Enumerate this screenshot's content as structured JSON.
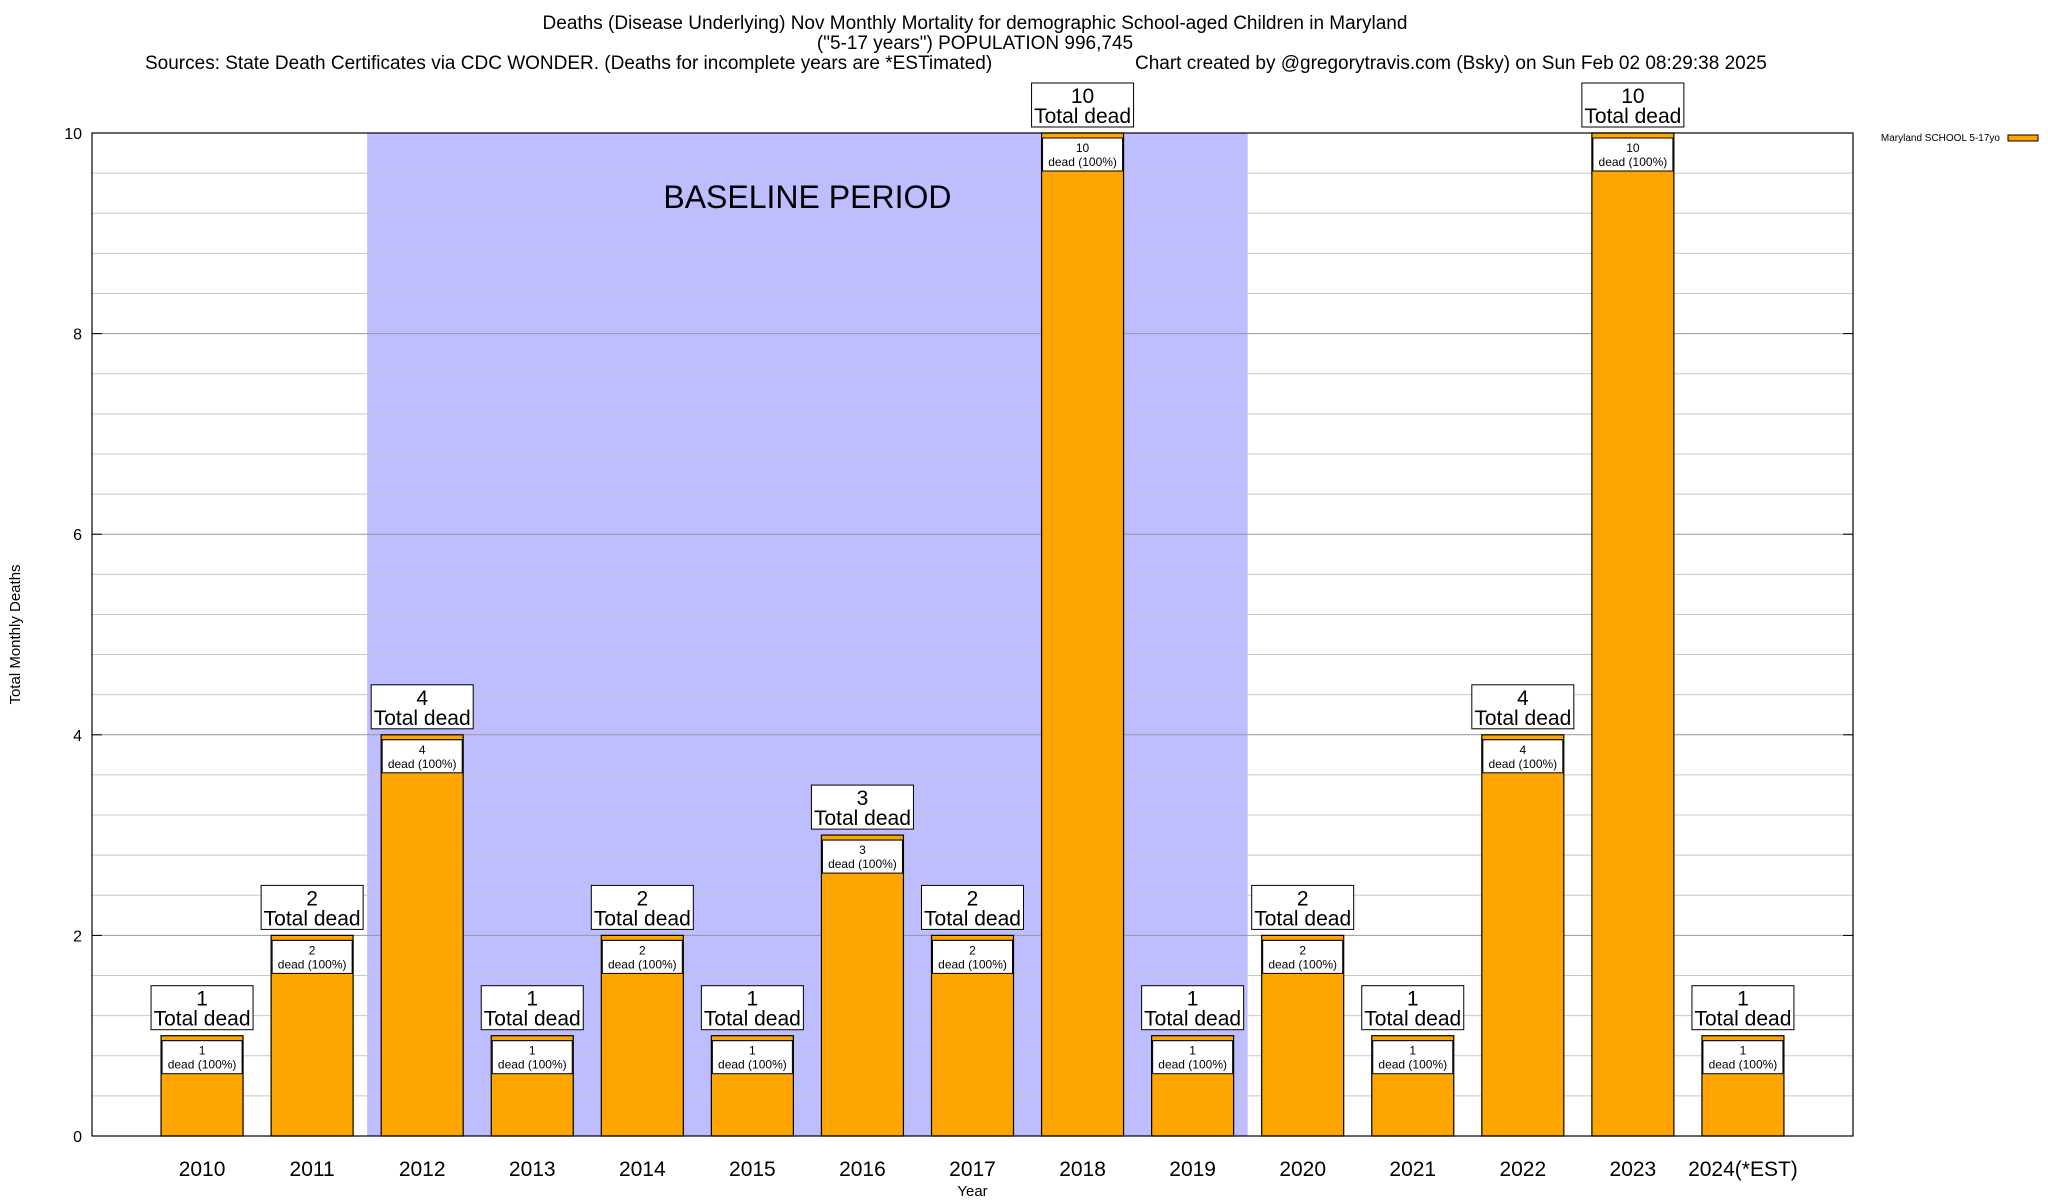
{
  "chart_data": {
    "type": "bar",
    "title": "Deaths (Disease Underlying) Nov Monthly Mortality for demographic School-aged Children in Maryland",
    "subtitle": "(\"5-17 years\") POPULATION 996,745",
    "sources": "Sources: State Death Certificates via CDC WONDER. (Deaths for incomplete years are *ESTimated)",
    "credit": "Chart created by @gregorytravis.com (Bsky) on Sun Feb 02 08:29:38 2025",
    "xlabel": "Year",
    "ylabel": "Total Monthly Deaths",
    "ylim": [
      0,
      10
    ],
    "yticks": [
      0,
      2,
      4,
      6,
      8,
      10
    ],
    "grid": true,
    "legend_position": "top-right",
    "categories": [
      "2010",
      "2011",
      "2012",
      "2013",
      "2014",
      "2015",
      "2016",
      "2017",
      "2018",
      "2019",
      "2020",
      "2021",
      "2022",
      "2023",
      "2024(*EST)"
    ],
    "series": [
      {
        "name": "Maryland SCHOOL 5-17yo",
        "color": "#FFA500",
        "values": [
          1,
          2,
          4,
          1,
          2,
          1,
          3,
          2,
          10,
          1,
          2,
          1,
          4,
          10,
          1
        ]
      }
    ],
    "total_label": "Total dead",
    "segment_label": "dead (100%)",
    "baseline_period": {
      "label": "BASELINE PERIOD",
      "start": "2012",
      "end": "2019",
      "color": "#BDBDFF"
    }
  }
}
